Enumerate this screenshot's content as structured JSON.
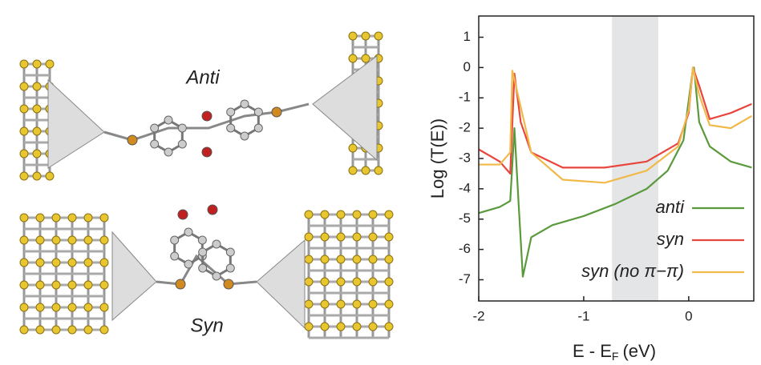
{
  "panel_labels": [
    "Anti",
    "Syn"
  ],
  "chart_data": {
    "type": "line",
    "y_label": "Log (T(E))",
    "x_label": {
      "main": "E - E",
      "sub": "F",
      "unit": "(eV)"
    },
    "xlim": [
      -2,
      0.62
    ],
    "ylim": [
      -7.7,
      1.7
    ],
    "xticks": [
      -2,
      -1,
      0
    ],
    "yticks": [
      1,
      0,
      -1,
      -2,
      -3,
      -4,
      -5,
      -6,
      -7
    ],
    "shaded_region": [
      -0.73,
      -0.29
    ],
    "legend": "lower right",
    "series": [
      {
        "name": "anti",
        "color": "#5a9a3c",
        "x": [
          -2,
          -1.8,
          -1.7,
          -1.66,
          -1.62,
          -1.58,
          -1.5,
          -1.3,
          -1.0,
          -0.7,
          -0.4,
          -0.2,
          -0.05,
          0.03,
          0.05,
          0.1,
          0.2,
          0.4,
          0.6
        ],
        "values": [
          -4.8,
          -4.6,
          -4.4,
          -2.0,
          -4.5,
          -6.9,
          -5.6,
          -5.2,
          -4.9,
          -4.5,
          -4.0,
          -3.4,
          -2.4,
          -0.3,
          0,
          -1.8,
          -2.6,
          -3.1,
          -3.3
        ]
      },
      {
        "name": "syn",
        "color": "#e8453c",
        "x": [
          -2,
          -1.8,
          -1.7,
          -1.66,
          -1.6,
          -1.5,
          -1.2,
          -0.8,
          -0.4,
          -0.1,
          0,
          0.04,
          0.1,
          0.2,
          0.4,
          0.6
        ],
        "values": [
          -2.7,
          -3.1,
          -3.5,
          -0.2,
          -1.8,
          -2.8,
          -3.3,
          -3.3,
          -3.1,
          -2.5,
          -1.5,
          0,
          -0.6,
          -1.7,
          -1.5,
          -1.2
        ]
      },
      {
        "name": "syn (no π−π)",
        "color": "#f0b94a",
        "x": [
          -2,
          -1.8,
          -1.7,
          -1.68,
          -1.62,
          -1.5,
          -1.2,
          -0.8,
          -0.4,
          -0.1,
          0,
          0.04,
          0.1,
          0.2,
          0.4,
          0.6
        ],
        "values": [
          -3.2,
          -3.2,
          -2.8,
          -0.1,
          -1.0,
          -2.8,
          -3.7,
          -3.8,
          -3.4,
          -2.6,
          -1.4,
          0,
          -0.9,
          -1.9,
          -2.0,
          -1.6
        ]
      }
    ]
  }
}
